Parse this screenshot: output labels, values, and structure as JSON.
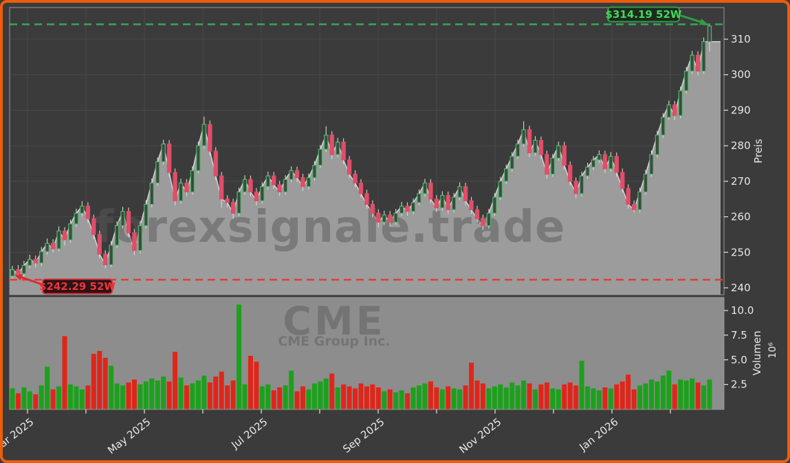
{
  "chart_data": {
    "type": "candlestick_with_volume",
    "title": "",
    "watermarks": {
      "main": "forexsignale.trade",
      "panel_title": "CME",
      "panel_caption": "CME Group Inc."
    },
    "price_axis": {
      "label": "Preis",
      "ticks": [
        240,
        250,
        260,
        270,
        280,
        290,
        300,
        310
      ],
      "range": [
        238.1,
        318.9
      ]
    },
    "volume_axis": {
      "label": "Volumen",
      "multiplier": "10⁶",
      "ticks": [
        "2.5",
        "5.0",
        "7.5",
        "10.0"
      ],
      "tick_values": [
        2.5,
        5.0,
        7.5,
        10.0
      ],
      "range": [
        0,
        11.4
      ]
    },
    "x_axis": {
      "ticks": [
        {
          "pos": 2.6,
          "label": "Mar 2025"
        },
        {
          "pos": 12.66,
          "label": ""
        },
        {
          "pos": 22.72,
          "label": "May 2025"
        },
        {
          "pos": 32.78,
          "label": ""
        },
        {
          "pos": 42.84,
          "label": "Jul 2025"
        },
        {
          "pos": 52.9,
          "label": ""
        },
        {
          "pos": 62.96,
          "label": "Sep 2025"
        },
        {
          "pos": 73.02,
          "label": ""
        },
        {
          "pos": 83.08,
          "label": "Nov 2025"
        },
        {
          "pos": 93.14,
          "label": ""
        },
        {
          "pos": 103.2,
          "label": "Jan 2026"
        },
        {
          "pos": 113.26,
          "label": ""
        }
      ]
    },
    "annotations": {
      "high": {
        "value": 314.19,
        "label": "$314.19 52W"
      },
      "low": {
        "value": 242.29,
        "label": "$242.29 52W"
      }
    },
    "style": {
      "background": "#3b3b3b",
      "frame": "#ee5d0c",
      "grid": "#4a4a4a",
      "spine": "#9a9a9a",
      "area_fill": "#9c9c9c",
      "area_line": "#d6d6d6",
      "volume_bg": "#8d8d8d",
      "up_border": "#52b56c",
      "up_fill": "#3d4a41",
      "down_border": "#e74964",
      "down_fill": "#dd4f6b",
      "wick": "#d8d8d8",
      "vol_up": "#1ba11b",
      "vol_down": "#e02519",
      "tick_text": "#e8e8e8",
      "high_line": "#3aa558",
      "high_text": "#41d95d",
      "high_box_bg": "#1d2a1e",
      "high_box_border": "#2f9e4a",
      "low_line": "#e04038",
      "low_text": "#f3343c",
      "low_box_bg": "#2a1416",
      "low_box_border": "#dd2a33",
      "watermark": "#5a5a5a",
      "watermark_dark": "#4c4c4c"
    },
    "ohlcv": [
      [
        243.3,
        246.2,
        242.29,
        245.1,
        2.1
      ],
      [
        245.1,
        246.4,
        243.2,
        244.0,
        1.6
      ],
      [
        244.0,
        247.6,
        243.1,
        246.3,
        2.2
      ],
      [
        246.3,
        249.3,
        245.5,
        248.0,
        1.8
      ],
      [
        248.0,
        249.1,
        245.7,
        247.0,
        1.5
      ],
      [
        247.0,
        251.5,
        246.1,
        250.2,
        2.4
      ],
      [
        250.2,
        253.9,
        249.4,
        252.5,
        4.3
      ],
      [
        252.5,
        253.7,
        249.9,
        251.0,
        2.0
      ],
      [
        251.0,
        257.3,
        250.2,
        256.0,
        2.3
      ],
      [
        256.0,
        257.1,
        251.9,
        253.5,
        7.4
      ],
      [
        253.5,
        259.2,
        252.7,
        258.0,
        2.5
      ],
      [
        258.0,
        262.3,
        257.1,
        261.0,
        2.3
      ],
      [
        261.0,
        264.4,
        260.1,
        263.0,
        2.0
      ],
      [
        263.0,
        264.1,
        258.2,
        259.5,
        2.4
      ],
      [
        259.5,
        260.6,
        253.7,
        255.0,
        5.6
      ],
      [
        255.0,
        256.1,
        248.3,
        249.5,
        5.9
      ],
      [
        249.5,
        250.6,
        245.5,
        246.5,
        5.2
      ],
      [
        246.5,
        253.2,
        245.8,
        252.0,
        4.4
      ],
      [
        252.0,
        258.7,
        251.2,
        257.5,
        2.6
      ],
      [
        257.5,
        262.8,
        256.7,
        261.5,
        2.4
      ],
      [
        261.5,
        262.6,
        254.2,
        255.5,
        2.7
      ],
      [
        255.5,
        256.6,
        249.2,
        250.5,
        3.0
      ],
      [
        250.5,
        258.8,
        249.7,
        257.5,
        2.5
      ],
      [
        257.5,
        264.7,
        256.7,
        263.5,
        2.8
      ],
      [
        263.5,
        270.8,
        262.7,
        269.5,
        3.1
      ],
      [
        269.5,
        276.7,
        268.7,
        275.5,
        2.9
      ],
      [
        275.5,
        281.7,
        274.7,
        280.5,
        3.3
      ],
      [
        280.5,
        281.6,
        271.3,
        272.5,
        2.8
      ],
      [
        272.5,
        273.6,
        263.2,
        264.5,
        5.8
      ],
      [
        264.5,
        270.7,
        263.7,
        269.5,
        3.2
      ],
      [
        269.5,
        270.6,
        265.8,
        267.0,
        2.4
      ],
      [
        267.0,
        274.2,
        266.2,
        273.0,
        2.6
      ],
      [
        273.0,
        281.2,
        272.2,
        280.0,
        2.9
      ],
      [
        280.0,
        288.2,
        279.2,
        286.0,
        3.4
      ],
      [
        286.0,
        287.1,
        277.3,
        278.5,
        2.7
      ],
      [
        278.5,
        279.6,
        270.3,
        271.5,
        3.3
      ],
      [
        271.5,
        272.6,
        262.6,
        265.0,
        3.8
      ],
      [
        265.0,
        266.1,
        262.7,
        264.0,
        2.4
      ],
      [
        264.0,
        265.1,
        259.4,
        261.0,
        2.9
      ],
      [
        261.0,
        268.2,
        260.2,
        267.0,
        10.6
      ],
      [
        267.0,
        271.7,
        266.2,
        270.5,
        2.5
      ],
      [
        270.5,
        271.6,
        265.8,
        267.0,
        5.4
      ],
      [
        267.0,
        268.1,
        263.2,
        264.5,
        4.8
      ],
      [
        264.5,
        269.7,
        263.7,
        268.5,
        2.3
      ],
      [
        268.5,
        272.7,
        267.7,
        271.5,
        2.5
      ],
      [
        271.5,
        272.6,
        267.8,
        269.0,
        1.9
      ],
      [
        269.0,
        270.1,
        265.8,
        267.0,
        2.2
      ],
      [
        267.0,
        271.7,
        266.2,
        270.5,
        2.4
      ],
      [
        270.5,
        274.2,
        269.7,
        273.0,
        3.9
      ],
      [
        273.0,
        274.1,
        269.8,
        271.0,
        1.8
      ],
      [
        271.0,
        272.1,
        267.3,
        268.5,
        2.3
      ],
      [
        268.5,
        272.2,
        267.7,
        271.0,
        2.0
      ],
      [
        271.0,
        275.7,
        270.2,
        274.5,
        2.6
      ],
      [
        274.5,
        280.2,
        273.7,
        279.0,
        2.8
      ],
      [
        279.0,
        285.5,
        278.2,
        283.0,
        3.1
      ],
      [
        283.0,
        284.1,
        276.3,
        277.5,
        3.6
      ],
      [
        277.5,
        282.2,
        276.7,
        281.0,
        2.2
      ],
      [
        281.0,
        282.1,
        274.8,
        276.0,
        2.5
      ],
      [
        276.0,
        277.1,
        270.8,
        272.0,
        2.3
      ],
      [
        272.0,
        273.1,
        268.3,
        269.5,
        2.1
      ],
      [
        269.5,
        270.6,
        265.3,
        266.5,
        2.6
      ],
      [
        266.5,
        267.6,
        262.3,
        263.5,
        2.3
      ],
      [
        263.5,
        264.6,
        259.8,
        261.0,
        2.5
      ],
      [
        261.0,
        262.1,
        257.0,
        258.5,
        2.2
      ],
      [
        258.5,
        261.7,
        257.7,
        260.5,
        1.8
      ],
      [
        260.5,
        261.6,
        257.2,
        258.5,
        2.0
      ],
      [
        258.5,
        262.2,
        257.7,
        261.0,
        1.7
      ],
      [
        261.0,
        264.2,
        260.2,
        263.0,
        1.9
      ],
      [
        263.0,
        264.1,
        260.3,
        261.5,
        1.6
      ],
      [
        261.5,
        265.2,
        260.7,
        264.0,
        2.2
      ],
      [
        264.0,
        267.7,
        263.2,
        266.5,
        2.4
      ],
      [
        266.5,
        270.7,
        265.7,
        269.5,
        2.6
      ],
      [
        269.5,
        270.6,
        263.8,
        265.0,
        2.8
      ],
      [
        265.0,
        266.1,
        261.3,
        262.5,
        2.2
      ],
      [
        262.5,
        267.2,
        261.7,
        266.0,
        2.0
      ],
      [
        266.0,
        267.1,
        260.8,
        262.0,
        2.3
      ],
      [
        262.0,
        266.7,
        261.2,
        265.5,
        2.1
      ],
      [
        265.5,
        269.7,
        264.7,
        268.5,
        2.0
      ],
      [
        268.5,
        269.6,
        263.3,
        264.5,
        2.4
      ],
      [
        264.5,
        265.6,
        260.8,
        262.0,
        4.7
      ],
      [
        262.0,
        263.1,
        258.3,
        259.5,
        2.9
      ],
      [
        259.5,
        260.6,
        256.3,
        257.5,
        2.6
      ],
      [
        257.5,
        262.2,
        256.7,
        261.0,
        2.1
      ],
      [
        261.0,
        266.7,
        260.2,
        265.5,
        2.3
      ],
      [
        265.5,
        271.2,
        264.7,
        270.0,
        2.5
      ],
      [
        270.0,
        274.7,
        269.2,
        273.5,
        2.2
      ],
      [
        273.5,
        278.2,
        272.7,
        277.0,
        2.7
      ],
      [
        277.0,
        281.7,
        276.2,
        280.5,
        2.4
      ],
      [
        280.5,
        286.9,
        279.7,
        284.5,
        2.9
      ],
      [
        284.5,
        285.6,
        276.8,
        278.0,
        2.6
      ],
      [
        278.0,
        282.7,
        277.2,
        281.5,
        2.0
      ],
      [
        281.5,
        282.6,
        276.3,
        277.5,
        2.5
      ],
      [
        277.5,
        278.6,
        270.8,
        272.0,
        2.7
      ],
      [
        272.0,
        277.7,
        271.2,
        276.5,
        2.1
      ],
      [
        276.5,
        281.2,
        275.7,
        280.0,
        2.0
      ],
      [
        280.0,
        281.1,
        273.3,
        274.5,
        2.5
      ],
      [
        274.5,
        275.6,
        268.8,
        270.0,
        2.7
      ],
      [
        270.0,
        271.1,
        265.3,
        266.5,
        2.4
      ],
      [
        266.5,
        272.7,
        265.7,
        271.5,
        4.9
      ],
      [
        271.5,
        275.2,
        270.7,
        274.0,
        2.3
      ],
      [
        274.0,
        277.1,
        273.2,
        276.0,
        2.1
      ],
      [
        276.0,
        278.7,
        275.2,
        277.5,
        1.9
      ],
      [
        277.5,
        278.6,
        272.3,
        273.5,
        2.2
      ],
      [
        273.5,
        278.2,
        272.7,
        277.0,
        2.1
      ],
      [
        277.0,
        278.1,
        271.3,
        272.5,
        2.5
      ],
      [
        272.5,
        273.6,
        266.8,
        268.0,
        2.8
      ],
      [
        268.0,
        269.1,
        262.3,
        263.5,
        3.5
      ],
      [
        263.5,
        264.6,
        261.2,
        262.0,
        2.0
      ],
      [
        262.0,
        268.2,
        261.2,
        267.0,
        2.4
      ],
      [
        267.0,
        273.2,
        266.2,
        272.0,
        2.6
      ],
      [
        272.0,
        278.7,
        271.2,
        277.5,
        3.0
      ],
      [
        277.5,
        284.2,
        276.7,
        283.0,
        2.8
      ],
      [
        283.0,
        289.2,
        282.2,
        288.0,
        3.4
      ],
      [
        288.0,
        292.7,
        287.2,
        291.5,
        3.9
      ],
      [
        291.5,
        292.6,
        287.2,
        288.5,
        2.5
      ],
      [
        288.5,
        296.7,
        287.7,
        295.5,
        3.0
      ],
      [
        295.5,
        302.2,
        294.7,
        301.0,
        2.9
      ],
      [
        301.0,
        306.7,
        300.2,
        305.5,
        3.1
      ],
      [
        305.5,
        306.6,
        299.7,
        301.0,
        2.7
      ],
      [
        301.0,
        310.5,
        300.2,
        309.3,
        2.4
      ],
      [
        309.3,
        314.19,
        306.5,
        313.7,
        3.0
      ]
    ]
  }
}
